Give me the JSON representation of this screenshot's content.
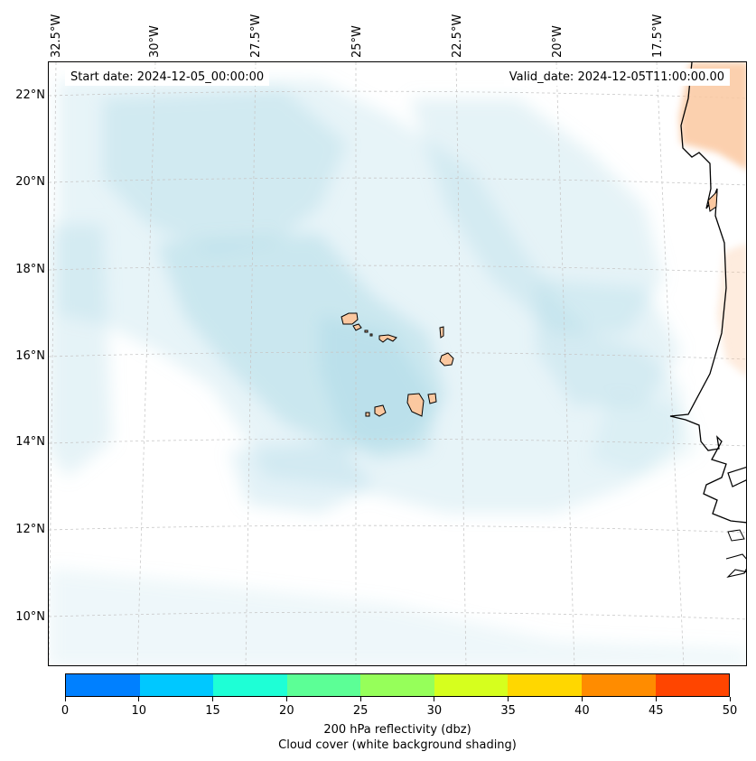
{
  "info": {
    "start_date": "Start date: 2024-12-05_00:00:00",
    "valid_date": "Valid_date: 2024-12-05T11:00:00.00"
  },
  "map": {
    "longitude_labels": [
      "32.5°W",
      "30°W",
      "27.5°W",
      "25°W",
      "22.5°W",
      "20°W",
      "17.5°W"
    ],
    "latitude_labels": [
      "22°N",
      "20°N",
      "18°N",
      "16°N",
      "14°N",
      "12°N",
      "10°N"
    ],
    "gridlines": "dashed",
    "features": [
      "cape-verde-islands",
      "west-africa-coastline"
    ]
  },
  "colorbar": {
    "ticks": [
      "0",
      "10",
      "15",
      "20",
      "25",
      "30",
      "35",
      "40",
      "45",
      "50"
    ],
    "colors": [
      "#0080ff",
      "#00c8ff",
      "#1effd6",
      "#5cff96",
      "#96ff5a",
      "#d6ff1e",
      "#ffd700",
      "#ff8c00",
      "#ff4500"
    ],
    "label": "200 hPa reflectivity (dbz)",
    "sublabel": "Cloud cover (white background shading)"
  },
  "colors": {
    "cloud_shading": "#a9d6e5",
    "land_shading": "#fbc8a0",
    "coastline": "#000000"
  }
}
